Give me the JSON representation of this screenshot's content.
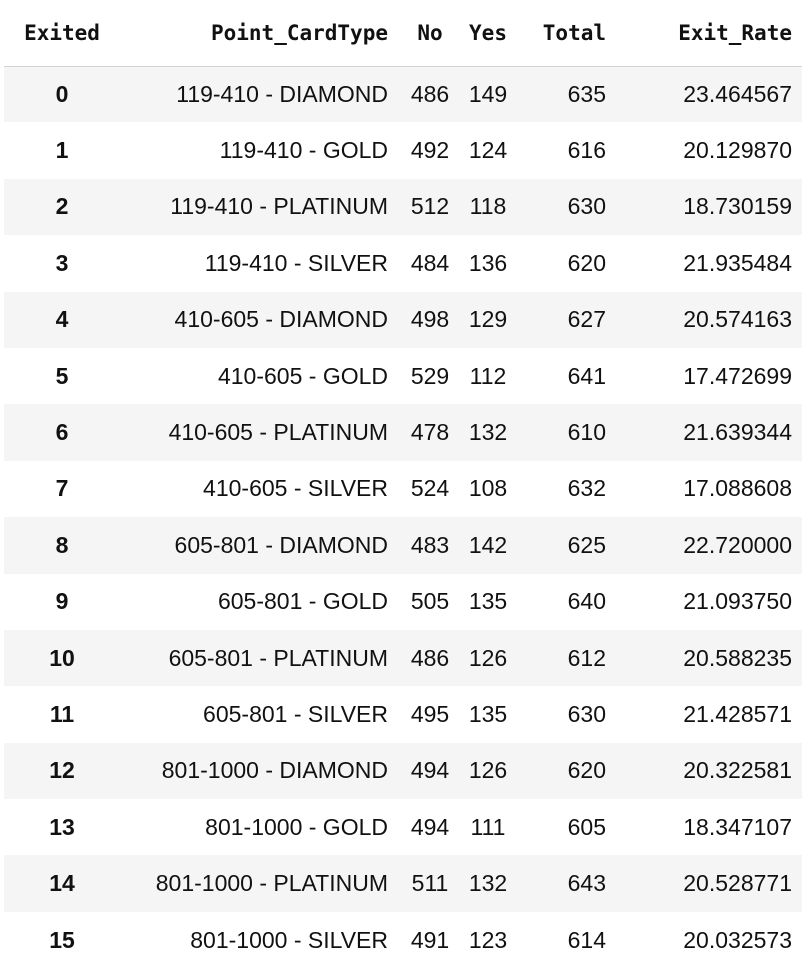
{
  "table": {
    "columns": [
      "Exited",
      "Point_CardType",
      "No",
      "Yes",
      "Total",
      "Exit_Rate"
    ],
    "rows": [
      [
        "0",
        "119-410 - DIAMOND",
        "486",
        "149",
        "635",
        "23.464567"
      ],
      [
        "1",
        "119-410 - GOLD",
        "492",
        "124",
        "616",
        "20.129870"
      ],
      [
        "2",
        "119-410 - PLATINUM",
        "512",
        "118",
        "630",
        "18.730159"
      ],
      [
        "3",
        "119-410 - SILVER",
        "484",
        "136",
        "620",
        "21.935484"
      ],
      [
        "4",
        "410-605 - DIAMOND",
        "498",
        "129",
        "627",
        "20.574163"
      ],
      [
        "5",
        "410-605 - GOLD",
        "529",
        "112",
        "641",
        "17.472699"
      ],
      [
        "6",
        "410-605 - PLATINUM",
        "478",
        "132",
        "610",
        "21.639344"
      ],
      [
        "7",
        "410-605 - SILVER",
        "524",
        "108",
        "632",
        "17.088608"
      ],
      [
        "8",
        "605-801 - DIAMOND",
        "483",
        "142",
        "625",
        "22.720000"
      ],
      [
        "9",
        "605-801 - GOLD",
        "505",
        "135",
        "640",
        "21.093750"
      ],
      [
        "10",
        "605-801 - PLATINUM",
        "486",
        "126",
        "612",
        "20.588235"
      ],
      [
        "11",
        "605-801 - SILVER",
        "495",
        "135",
        "630",
        "21.428571"
      ],
      [
        "12",
        "801-1000 - DIAMOND",
        "494",
        "126",
        "620",
        "20.322581"
      ],
      [
        "13",
        "801-1000 - GOLD",
        "494",
        "111",
        "605",
        "18.347107"
      ],
      [
        "14",
        "801-1000 - PLATINUM",
        "511",
        "132",
        "643",
        "20.528771"
      ],
      [
        "15",
        "801-1000 - SILVER",
        "491",
        "123",
        "614",
        "20.032573"
      ]
    ]
  }
}
